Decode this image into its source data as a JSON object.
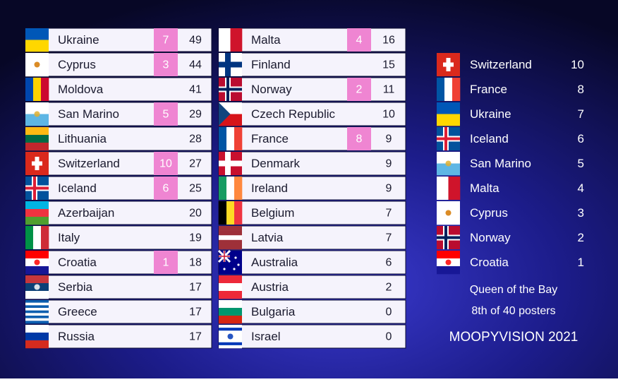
{
  "left": {
    "rows": [
      {
        "country": "Ukraine",
        "points": 7,
        "total": 49
      },
      {
        "country": "Cyprus",
        "points": 3,
        "total": 44
      },
      {
        "country": "Moldova",
        "total": 41
      },
      {
        "country": "San Marino",
        "points": 5,
        "total": 29
      },
      {
        "country": "Lithuania",
        "total": 28
      },
      {
        "country": "Switzerland",
        "points": 10,
        "total": 27
      },
      {
        "country": "Iceland",
        "points": 6,
        "total": 25
      },
      {
        "country": "Azerbaijan",
        "total": 20
      },
      {
        "country": "Italy",
        "total": 19
      },
      {
        "country": "Croatia",
        "points": 1,
        "total": 18
      },
      {
        "country": "Serbia",
        "total": 17
      },
      {
        "country": "Greece",
        "total": 17
      },
      {
        "country": "Russia",
        "total": 17
      }
    ]
  },
  "middle": {
    "rows": [
      {
        "country": "Malta",
        "points": 4,
        "total": 16
      },
      {
        "country": "Finland",
        "total": 15
      },
      {
        "country": "Norway",
        "points": 2,
        "total": 11
      },
      {
        "country": "Czech Republic",
        "total": 10
      },
      {
        "country": "France",
        "points": 8,
        "total": 9
      },
      {
        "country": "Denmark",
        "total": 9
      },
      {
        "country": "Ireland",
        "total": 9
      },
      {
        "country": "Belgium",
        "total": 7
      },
      {
        "country": "Latvia",
        "total": 7
      },
      {
        "country": "Australia",
        "total": 6
      },
      {
        "country": "Austria",
        "total": 2
      },
      {
        "country": "Bulgaria",
        "total": 0
      },
      {
        "country": "Israel",
        "total": 0
      }
    ]
  },
  "right": {
    "rows": [
      {
        "country": "Switzerland",
        "points": 10
      },
      {
        "country": "France",
        "points": 8
      },
      {
        "country": "Ukraine",
        "points": 7
      },
      {
        "country": "Iceland",
        "points": 6
      },
      {
        "country": "San Marino",
        "points": 5
      },
      {
        "country": "Malta",
        "points": 4
      },
      {
        "country": "Cyprus",
        "points": 3
      },
      {
        "country": "Norway",
        "points": 2
      },
      {
        "country": "Croatia",
        "points": 1
      }
    ]
  },
  "footer": {
    "line1": "Queen of the Bay",
    "line2": "8th of 40 posters",
    "brand": "MOOPYVISION 2021"
  }
}
